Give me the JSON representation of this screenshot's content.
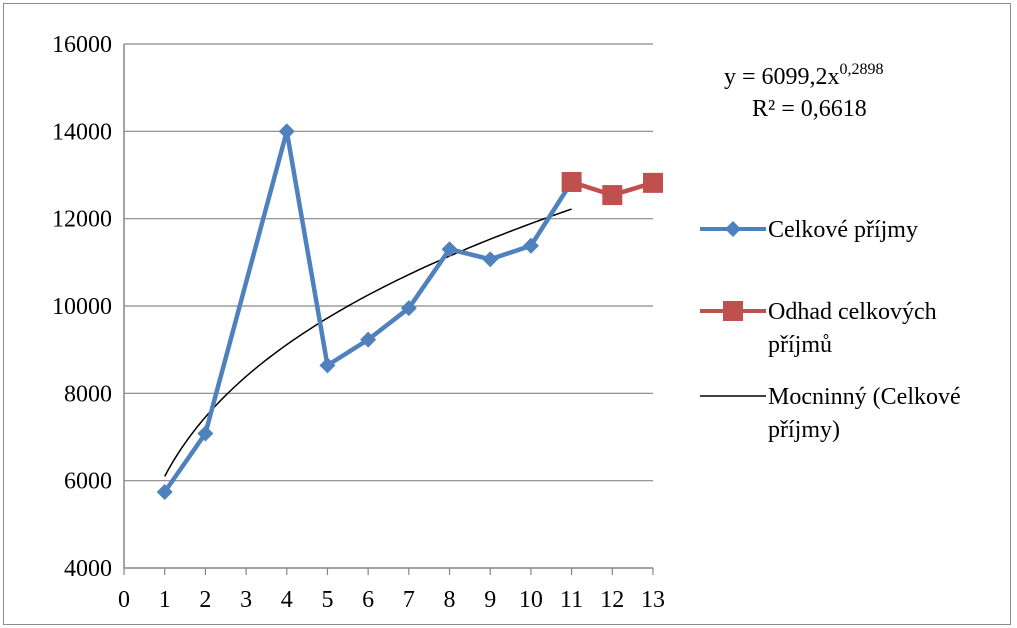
{
  "chart_data": {
    "type": "line",
    "x_ticks": [
      "0",
      "1",
      "2",
      "3",
      "4",
      "5",
      "6",
      "7",
      "8",
      "9",
      "10",
      "11",
      "12",
      "13"
    ],
    "xlim": [
      0,
      13
    ],
    "ylim": [
      4000,
      16000
    ],
    "y_ticks": [
      "4000",
      "6000",
      "8000",
      "10000",
      "12000",
      "14000",
      "16000"
    ],
    "grid": true,
    "legend_position": "right",
    "series": [
      {
        "name": "Celkové příjmy",
        "color": "#4F81BD",
        "marker": "diamond",
        "x": [
          1,
          2,
          4,
          5,
          6,
          7,
          8,
          9,
          10,
          11
        ],
        "y": [
          5740,
          7080,
          14000,
          8640,
          9230,
          9950,
          11300,
          11070,
          11380,
          12840
        ]
      },
      {
        "name": "Odhad celkových příjmů",
        "name_lines": [
          "Odhad celkových",
          "příjmů"
        ],
        "color": "#C0504D",
        "marker": "square",
        "x": [
          11,
          12,
          13
        ],
        "y": [
          12840,
          12540,
          12820
        ]
      }
    ],
    "trendline": {
      "name": "Mocninný (Celkové příjmy)",
      "name_lines": [
        "Mocninný (Celkové",
        "příjmy)"
      ],
      "color": "#000000",
      "coef": 6099.2,
      "exp": 0.2898,
      "x_range": [
        1,
        11
      ],
      "equation_prefix": "y = 6099,2x",
      "equation_exp": "0,2898",
      "r_squared": "R² = 0,6618"
    }
  }
}
